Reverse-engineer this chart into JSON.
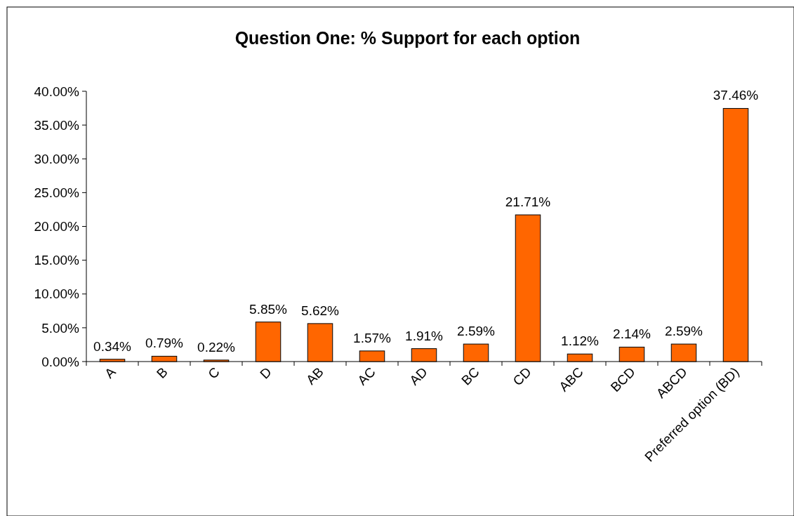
{
  "chart_data": {
    "type": "bar",
    "title": "Question One: % Support for each option",
    "categories": [
      "A",
      "B",
      "C",
      "D",
      "AB",
      "AC",
      "AD",
      "BC",
      "CD",
      "ABC",
      "BCD",
      "ABCD",
      "Preferred option (BD)"
    ],
    "values": [
      0.34,
      0.79,
      0.22,
      5.85,
      5.62,
      1.57,
      1.91,
      2.59,
      21.71,
      1.12,
      2.14,
      2.59,
      37.46
    ],
    "value_labels": [
      "0.34%",
      "0.79%",
      "0.22%",
      "5.85%",
      "5.62%",
      "1.57%",
      "1.91%",
      "2.59%",
      "21.71%",
      "1.12%",
      "2.14%",
      "2.59%",
      "37.46%"
    ],
    "color": "#ff6600",
    "ylim": [
      0,
      40
    ],
    "yticks": [
      {
        "value": 0,
        "label": "0.00%"
      },
      {
        "value": 5,
        "label": "5.00%"
      },
      {
        "value": 10,
        "label": "10.00%"
      },
      {
        "value": 15,
        "label": "15.00%"
      },
      {
        "value": 20,
        "label": "20.00%"
      },
      {
        "value": 25,
        "label": "25.00%"
      },
      {
        "value": 30,
        "label": "30.00%"
      },
      {
        "value": 35,
        "label": "35.00%"
      },
      {
        "value": 40,
        "label": "40.00%"
      }
    ],
    "grid": false
  }
}
